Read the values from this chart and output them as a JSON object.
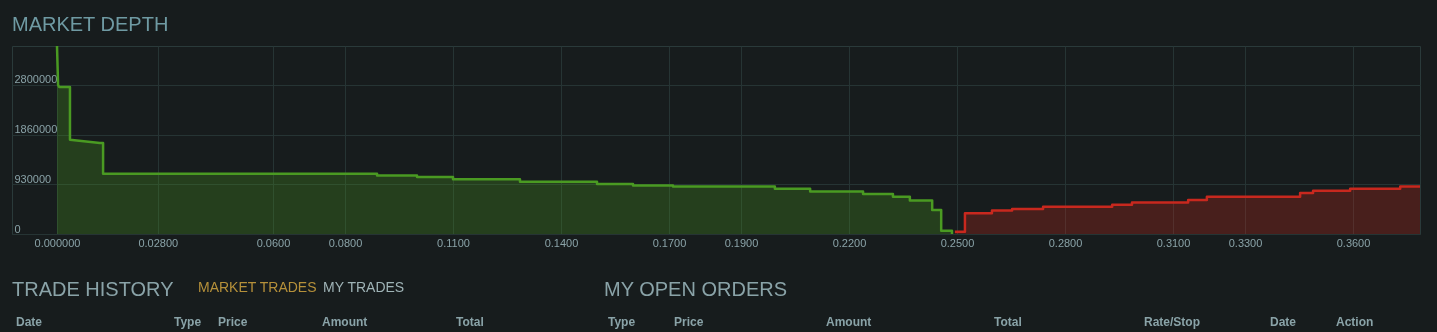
{
  "chart_data": {
    "type": "area",
    "title": "MARKET DEPTH",
    "xlim": [
      -0.0125,
      0.3786
    ],
    "ylim": [
      0,
      3530000
    ],
    "xticks": [
      {
        "value": 0,
        "label": "0.000000"
      },
      {
        "value": 0.028,
        "label": "0.02800"
      },
      {
        "value": 0.06,
        "label": "0.0600"
      },
      {
        "value": 0.08,
        "label": "0.0800"
      },
      {
        "value": 0.11,
        "label": "0.1100"
      },
      {
        "value": 0.14,
        "label": "0.1400"
      },
      {
        "value": 0.17,
        "label": "0.1700"
      },
      {
        "value": 0.19,
        "label": "0.1900"
      },
      {
        "value": 0.22,
        "label": "0.2200"
      },
      {
        "value": 0.25,
        "label": "0.2500"
      },
      {
        "value": 0.28,
        "label": "0.2800"
      },
      {
        "value": 0.31,
        "label": "0.3100"
      },
      {
        "value": 0.33,
        "label": "0.3300"
      },
      {
        "value": 0.36,
        "label": "0.3600"
      }
    ],
    "yticks": [
      0,
      930000,
      1860000,
      2800000
    ],
    "grid": true,
    "series": [
      {
        "color": "#4a9a22",
        "x": [
          0,
          0.0003,
          0.0006,
          0.0036,
          0.0036,
          0.0119,
          0.0128,
          0.0128,
          0.0889,
          0.0889,
          0.1,
          0.1,
          0.11,
          0.11,
          0.1286,
          0.1286,
          0.15,
          0.15,
          0.16,
          0.16,
          0.1711,
          0.1711,
          0.1994,
          0.1994,
          0.2092,
          0.2092,
          0.2239,
          0.2239,
          0.2322,
          0.2322,
          0.2369,
          0.2369,
          0.2431,
          0.2431,
          0.2456,
          0.2456,
          0.2486,
          0.2486
        ],
        "values": [
          3530000,
          2800000,
          2760000,
          2760000,
          1770000,
          1710000,
          1710000,
          1130000,
          1130000,
          1100000,
          1100000,
          1070000,
          1070000,
          1030000,
          1030000,
          980000,
          980000,
          940000,
          940000,
          910000,
          910000,
          890000,
          890000,
          850000,
          850000,
          800000,
          800000,
          750000,
          750000,
          700000,
          700000,
          630000,
          630000,
          450000,
          450000,
          60000,
          60000,
          0
        ]
      },
      {
        "color": "#c8281e",
        "x": [
          0.2494,
          0.2522,
          0.2522,
          0.2597,
          0.2597,
          0.2653,
          0.2653,
          0.2739,
          0.2739,
          0.2931,
          0.2931,
          0.2986,
          0.2986,
          0.3142,
          0.3142,
          0.3194,
          0.3194,
          0.3453,
          0.3453,
          0.3489,
          0.3489,
          0.3592,
          0.3592,
          0.3731,
          0.3731,
          0.3786
        ],
        "values": [
          40000,
          40000,
          390000,
          390000,
          440000,
          440000,
          470000,
          470000,
          510000,
          510000,
          550000,
          550000,
          590000,
          590000,
          640000,
          640000,
          700000,
          700000,
          770000,
          770000,
          810000,
          810000,
          850000,
          850000,
          890000,
          890000
        ]
      }
    ],
    "annotations": [
      "TRADE HISTORY",
      "MARKET TRADES",
      "MY TRADES",
      "MY OPEN ORDERS",
      "Date",
      "Type",
      "Price",
      "Amount",
      "Total",
      "Type",
      "Price",
      "Amount",
      "Total",
      "Rate/Stop",
      "Date",
      "Action"
    ]
  }
}
